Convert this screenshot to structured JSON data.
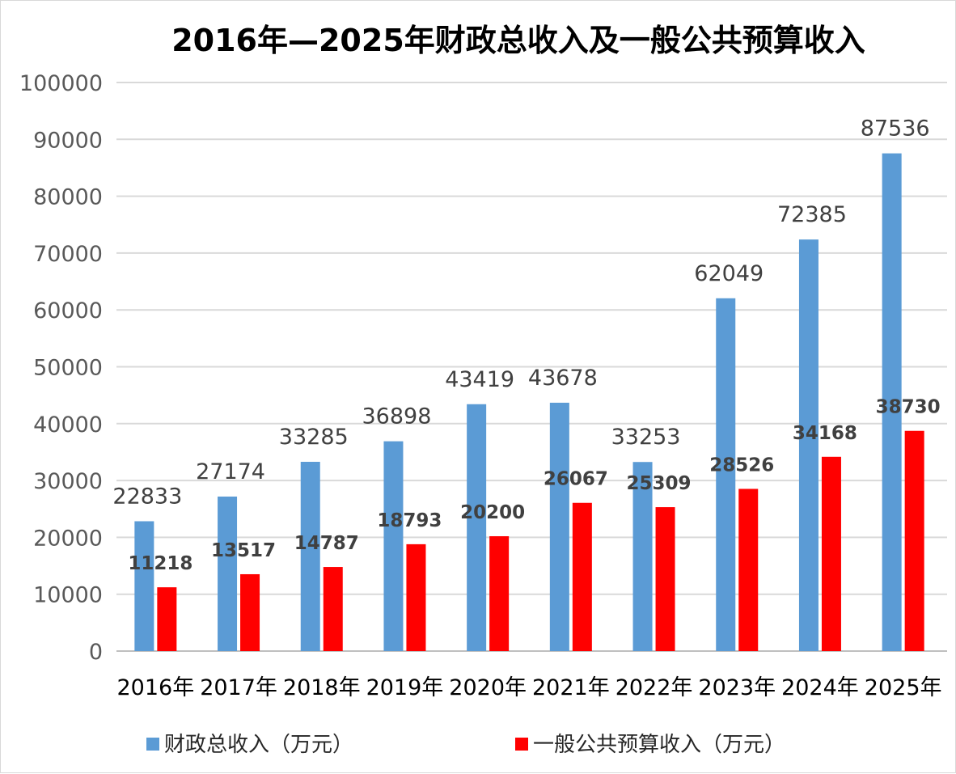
{
  "chart_data": {
    "type": "bar",
    "title": "2016年—2025年财政总收入及一般公共预算收入",
    "categories": [
      "2016年",
      "2017年",
      "2018年",
      "2019年",
      "2020年",
      "2021年",
      "2022年",
      "2023年",
      "2024年",
      "2025年"
    ],
    "series": [
      {
        "name": "财政总收入（万元）",
        "color": "#5b9bd5",
        "values": [
          22833,
          27174,
          33285,
          36898,
          43419,
          43678,
          33253,
          62049,
          72385,
          87536
        ],
        "labels": [
          "22833",
          "27174",
          "33285",
          "36898",
          "43419",
          "43678",
          "33253",
          "62049",
          "72385",
          "87536"
        ]
      },
      {
        "name": "一般公共预算收入（万元）",
        "color": "#ff0000",
        "values": [
          11218,
          13517,
          14787,
          18793,
          20200,
          26067,
          25309,
          28526,
          34168,
          38730
        ],
        "labels": [
          "11218",
          "13517",
          "14787",
          "18793",
          "20200",
          "26067",
          "25309",
          "28526",
          "34168",
          "38730"
        ]
      }
    ],
    "ylim": [
      0,
      100000
    ],
    "yticks": [
      "0",
      "10000",
      "20000",
      "30000",
      "40000",
      "50000",
      "60000",
      "70000",
      "80000",
      "90000",
      "100000"
    ],
    "grid": true,
    "legend": "bottom"
  }
}
